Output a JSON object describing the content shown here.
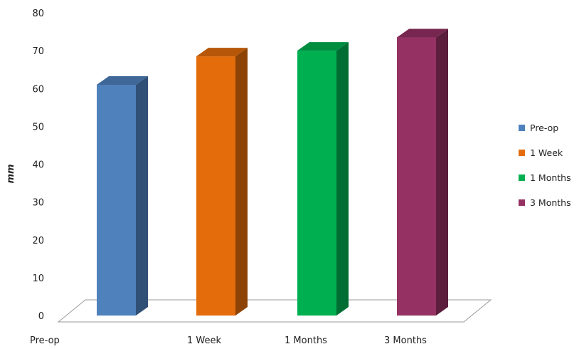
{
  "chart_data": {
    "type": "bar",
    "title": "",
    "xlabel": "",
    "ylabel": "mm",
    "ylim": [
      0,
      80
    ],
    "yticks": [
      0,
      10,
      20,
      30,
      40,
      50,
      60,
      70,
      80
    ],
    "x_tick_labels": [
      "Pre-op",
      "1 Week",
      "1 Months",
      "3 Months"
    ],
    "series": [
      {
        "name": "Pre-op",
        "value": 61,
        "color": "#4F81BD"
      },
      {
        "name": "1 Week",
        "value": 68.5,
        "color": "#E46C0A"
      },
      {
        "name": "1 Months",
        "value": 70,
        "color": "#00B050"
      },
      {
        "name": "3 Months",
        "value": 73.5,
        "color": "#953163"
      }
    ],
    "legend_position": "right",
    "style": "3d-columns",
    "grid": false
  }
}
